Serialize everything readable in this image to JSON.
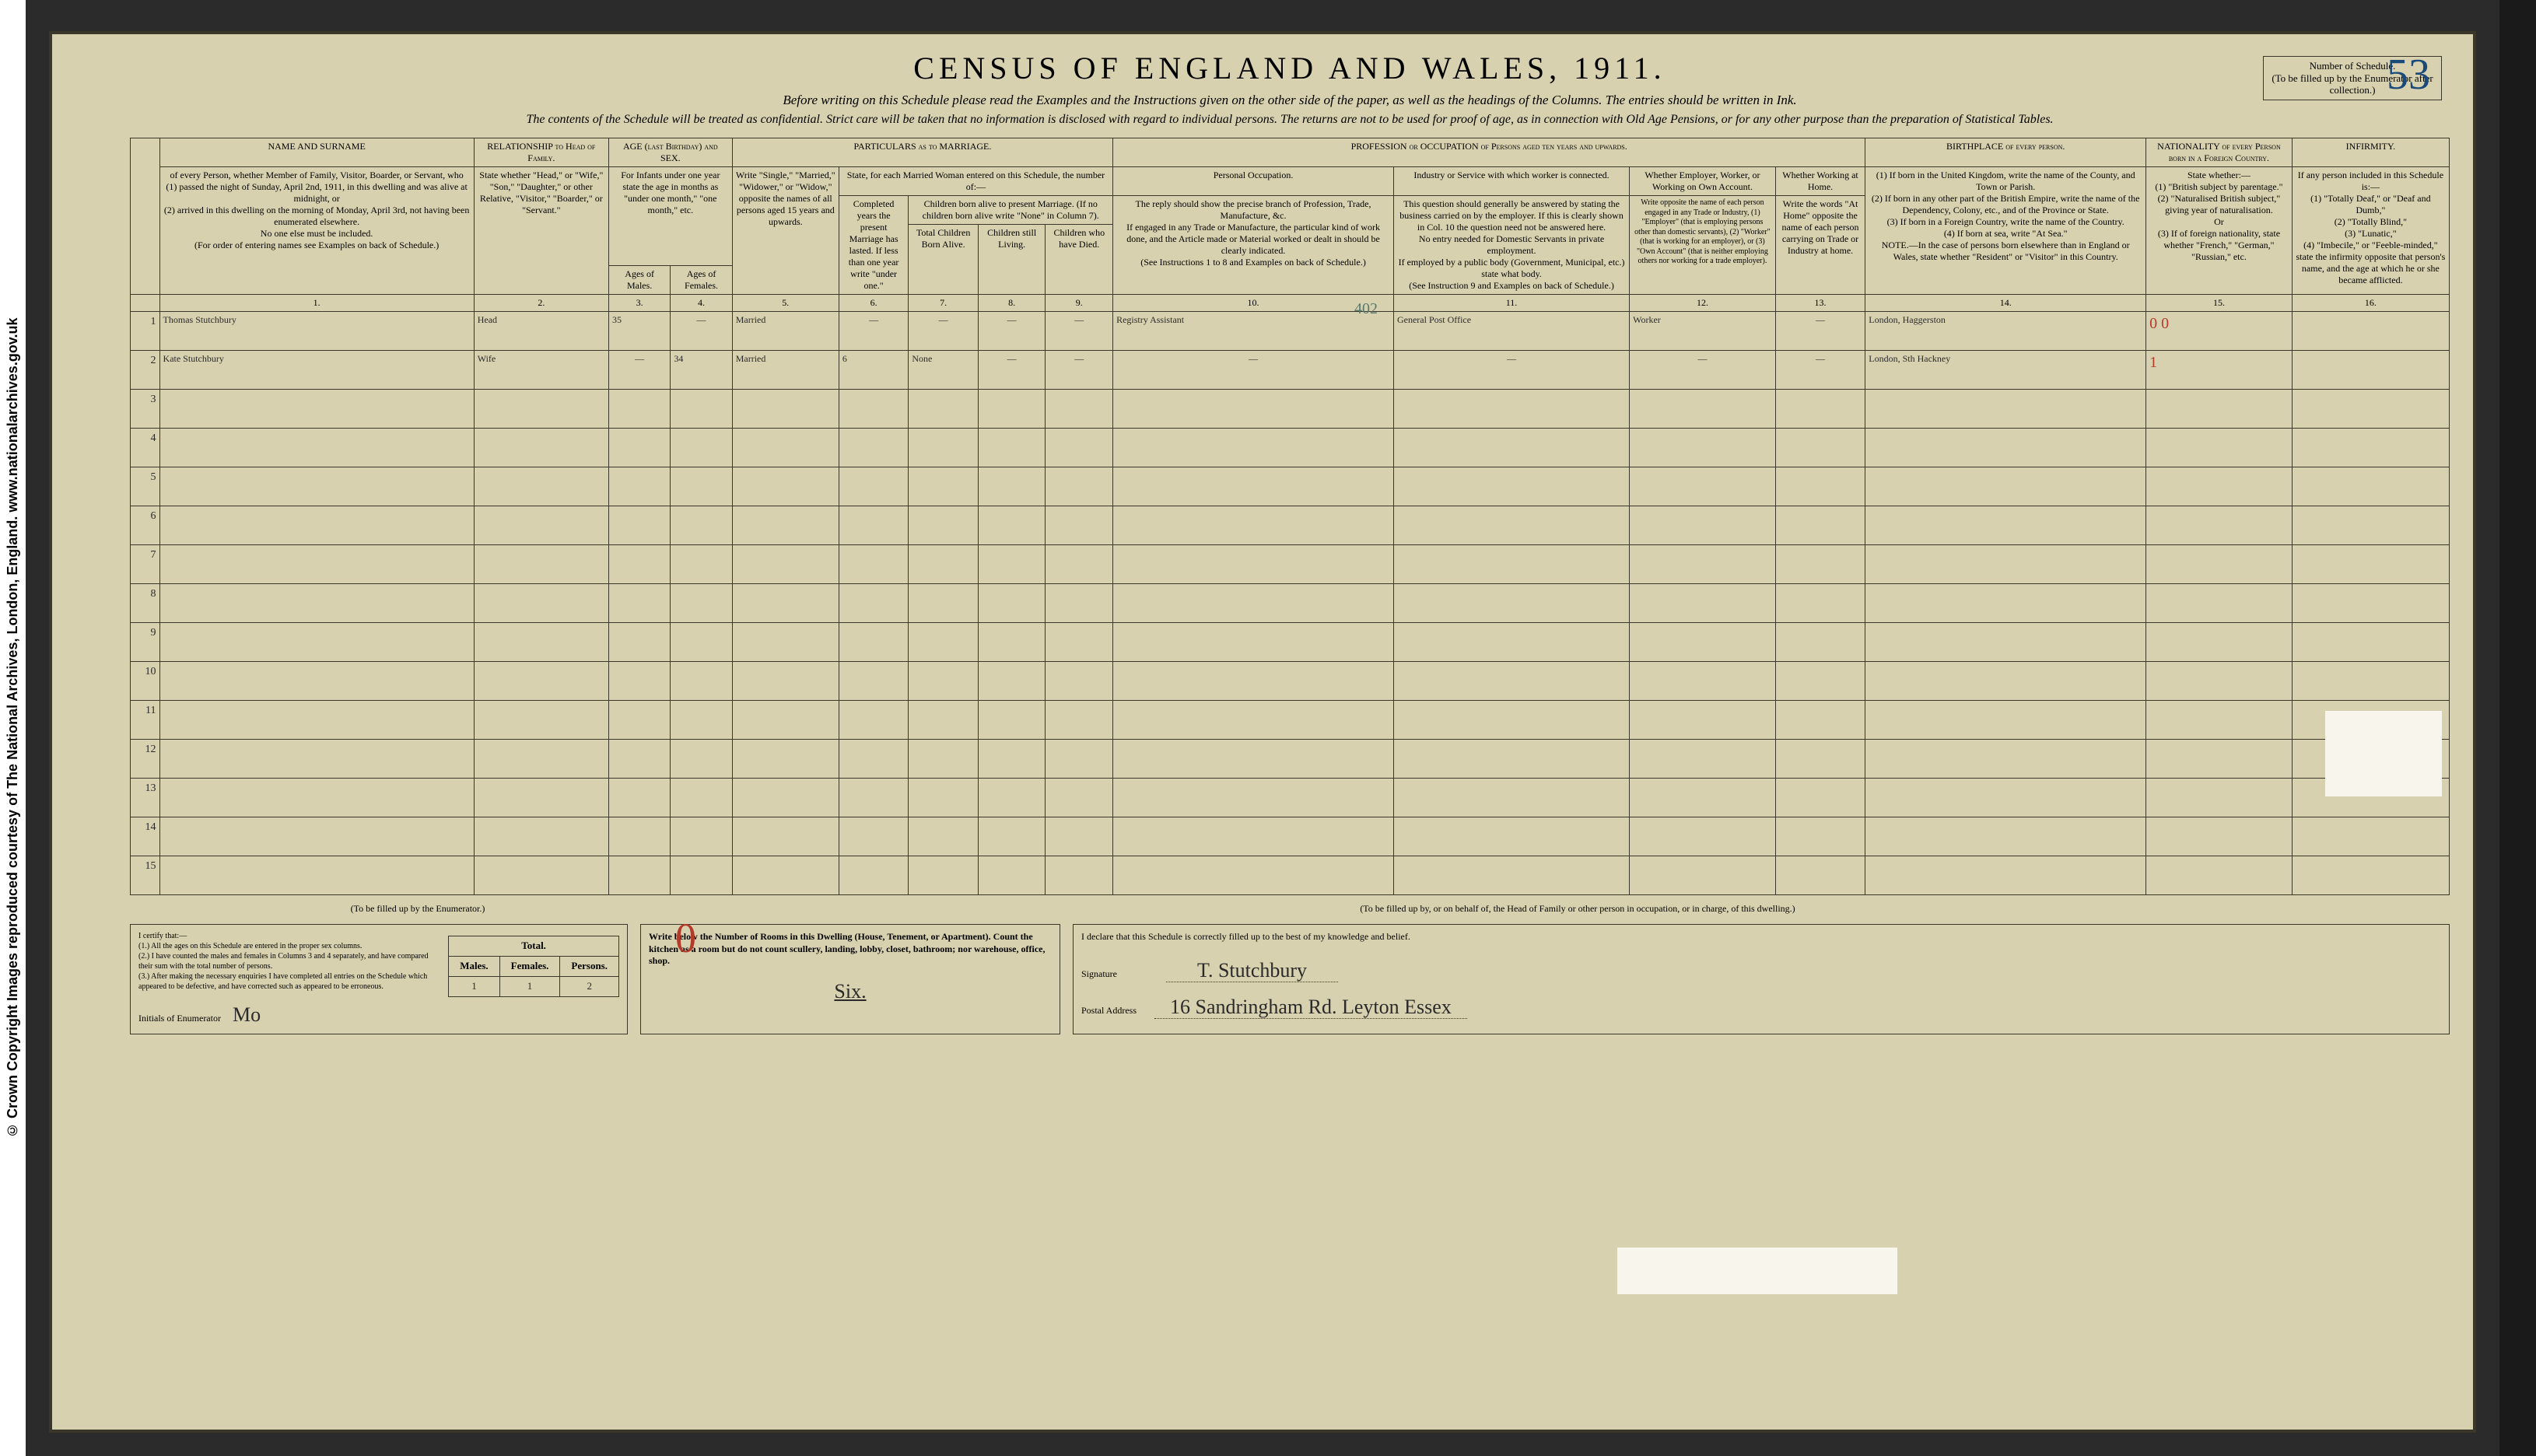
{
  "copyright": "© Crown Copyright Images reproduced courtesy of The National Archives, London, England. www.nationalarchives.gov.uk",
  "schedule_box": {
    "label": "Number of Schedule.",
    "note": "(To be filled up by the Enumerator after collection.)",
    "value": "53"
  },
  "title": "CENSUS OF ENGLAND AND WALES, 1911.",
  "subtitle": "Before writing on this Schedule please read the Examples and the Instructions given on the other side of the paper, as well as the headings of the Columns.  The entries should be written in Ink.",
  "confidential": "The contents of the Schedule will be treated as confidential.  Strict care will be taken that no information is disclosed with regard to individual persons.  The returns are not to be used for proof of age, as in connection with Old Age Pensions, or for any other purpose than the preparation of Statistical Tables.",
  "headers": {
    "name": "NAME AND SURNAME",
    "relationship": "RELATIONSHIP to Head of Family.",
    "age": "AGE (last Birthday) and SEX.",
    "marriage": "PARTICULARS as to MARRIAGE.",
    "profession": "PROFESSION or OCCUPATION of Persons aged ten years and upwards.",
    "birthplace": "BIRTHPLACE of every person.",
    "nationality": "NATIONALITY of every Person born in a Foreign Country.",
    "infirmity": "INFIRMITY."
  },
  "instructions": {
    "name": "of every Person, whether Member of Family, Visitor, Boarder, or Servant, who\n(1) passed the night of Sunday, April 2nd, 1911, in this dwelling and was alive at midnight, or\n(2) arrived in this dwelling on the morning of Monday, April 3rd, not having been enumerated elsewhere.\nNo one else must be included.\n(For order of entering names see Examples on back of Schedule.)",
    "relationship": "State whether \"Head,\" or \"Wife,\" \"Son,\" \"Daughter,\" or other Relative, \"Visitor,\" \"Boarder,\" or \"Servant.\"",
    "age": "For Infants under one year state the age in months as \"under one month,\" \"one month,\" etc.",
    "age_m": "Ages of Males.",
    "age_f": "Ages of Females.",
    "mar_status": "Write \"Single,\" \"Married,\" \"Widower,\" or \"Widow,\" opposite the names of all persons aged 15 years and upwards.",
    "mar_head": "State, for each Married Woman entered on this Schedule, the number of:—",
    "yrs": "Completed years the present Marriage has lasted. If less than one year write \"under one.\"",
    "children_head": "Children born alive to present Marriage. (If no children born alive write \"None\" in Column 7).",
    "born": "Total Children Born Alive.",
    "living": "Children still Living.",
    "died": "Children who have Died.",
    "pers_occ_head": "Personal Occupation.",
    "pers_occ": "The reply should show the precise branch of Profession, Trade, Manufacture, &c.\nIf engaged in any Trade or Manufacture, the particular kind of work done, and the Article made or Material worked or dealt in should be clearly indicated.\n(See Instructions 1 to 8 and Examples on back of Schedule.)",
    "industry_head": "Industry or Service with which worker is connected.",
    "industry": "This question should generally be answered by stating the business carried on by the employer. If this is clearly shown in Col. 10 the question need not be answered here.\nNo entry needed for Domestic Servants in private employment.\nIf employed by a public body (Government, Municipal, etc.) state what body.\n(See Instruction 9 and Examples on back of Schedule.)",
    "employer_head": "Whether Employer, Worker, or Working on Own Account.",
    "employer": "Write opposite the name of each person engaged in any Trade or Industry, (1) \"Employer\" (that is employing persons other than domestic servants), (2) \"Worker\" (that is working for an employer), or (3) \"Own Account\" (that is neither employing others nor working for a trade employer).",
    "at_home_head": "Whether Working at Home.",
    "at_home": "Write the words \"At Home\" opposite the name of each person carrying on Trade or Industry at home.",
    "birthplace": "(1) If born in the United Kingdom, write the name of the County, and Town or Parish.\n(2) If born in any other part of the British Empire, write the name of the Dependency, Colony, etc., and of the Province or State.\n(3) If born in a Foreign Country, write the name of the Country.\n(4) If born at sea, write \"At Sea.\"\nNOTE.—In the case of persons born elsewhere than in England or Wales, state whether \"Resident\" or \"Visitor\" in this Country.",
    "nationality": "State whether:—\n(1) \"British subject by parentage.\"\n(2) \"Naturalised British subject,\" giving year of naturalisation.\nOr\n(3) If of foreign nationality, state whether \"French,\" \"German,\" \"Russian,\" etc.",
    "infirmity": "If any person included in this Schedule is:—\n(1) \"Totally Deaf,\" or \"Deaf and Dumb,\"\n(2) \"Totally Blind,\"\n(3) \"Lunatic,\"\n(4) \"Imbecile,\" or \"Feeble-minded,\"\nstate the infirmity opposite that person's name, and the age at which he or she became afflicted."
  },
  "col_nums": [
    "1.",
    "2.",
    "3.",
    "4.",
    "5.",
    "6.",
    "7.",
    "8.",
    "9.",
    "10.",
    "11.",
    "12.",
    "13.",
    "14.",
    "15.",
    "16."
  ],
  "rows": [
    {
      "n": "1",
      "name": "Thomas Stutchbury",
      "rel": "Head",
      "agem": "35",
      "agef": "—",
      "mar": "Married",
      "yrs": "—",
      "born": "—",
      "liv": "—",
      "died": "—",
      "occ": "Registry Assistant",
      "ind": "General Post Office",
      "emp": "Worker",
      "home": "—",
      "birth": "London, Haggerston",
      "nat": "",
      "nat_red": "0 0",
      "inf": ""
    },
    {
      "n": "2",
      "name": "Kate Stutchbury",
      "rel": "Wife",
      "agem": "—",
      "agef": "34",
      "mar": "Married",
      "yrs": "6",
      "born": "None",
      "liv": "—",
      "died": "—",
      "occ": "—",
      "ind": "—",
      "emp": "—",
      "home": "—",
      "birth": "London, Sth Hackney",
      "nat": "",
      "nat_red": "1",
      "inf": ""
    },
    {
      "n": "3"
    },
    {
      "n": "4"
    },
    {
      "n": "5"
    },
    {
      "n": "6"
    },
    {
      "n": "7"
    },
    {
      "n": "8"
    },
    {
      "n": "9"
    },
    {
      "n": "10"
    },
    {
      "n": "11"
    },
    {
      "n": "12"
    },
    {
      "n": "13"
    },
    {
      "n": "14"
    },
    {
      "n": "15"
    }
  ],
  "red_annotation_402": "402",
  "footer": {
    "enum_caption": "(To be filled up by the Enumerator.)",
    "head_caption": "(To be filled up by, or on behalf of, the Head of Family or other person in occupation, or in charge, of this dwelling.)",
    "certify": "I certify that:—\n(1.) All the ages on this Schedule are entered in the proper sex columns.\n(2.) I have counted the males and females in Columns 3 and 4 separately, and have compared their sum with the total number of persons.\n(3.) After making the necessary enquiries I have completed all entries on the Schedule which appeared to be defective, and have corrected such as appeared to be erroneous.",
    "initials_label": "Initials of Enumerator",
    "initials_value": "Mo",
    "totals": {
      "head_total": "Total.",
      "males_h": "Males.",
      "females_h": "Females.",
      "persons_h": "Persons.",
      "males": "1",
      "females": "1",
      "persons": "2"
    },
    "big_zero": "0",
    "rooms_text": "Write below the Number of Rooms in this Dwelling (House, Tenement, or Apartment). Count the kitchen as a room but do not count scullery, landing, lobby, closet, bathroom; nor warehouse, office, shop.",
    "rooms_value": "Six.",
    "declare": "I declare that this Schedule is correctly filled up to the best of my knowledge and belief.",
    "sig_label": "Signature",
    "sig_value": "T. Stutchbury",
    "addr_label": "Postal Address",
    "addr_value": "16 Sandringham Rd.  Leyton  Essex"
  }
}
